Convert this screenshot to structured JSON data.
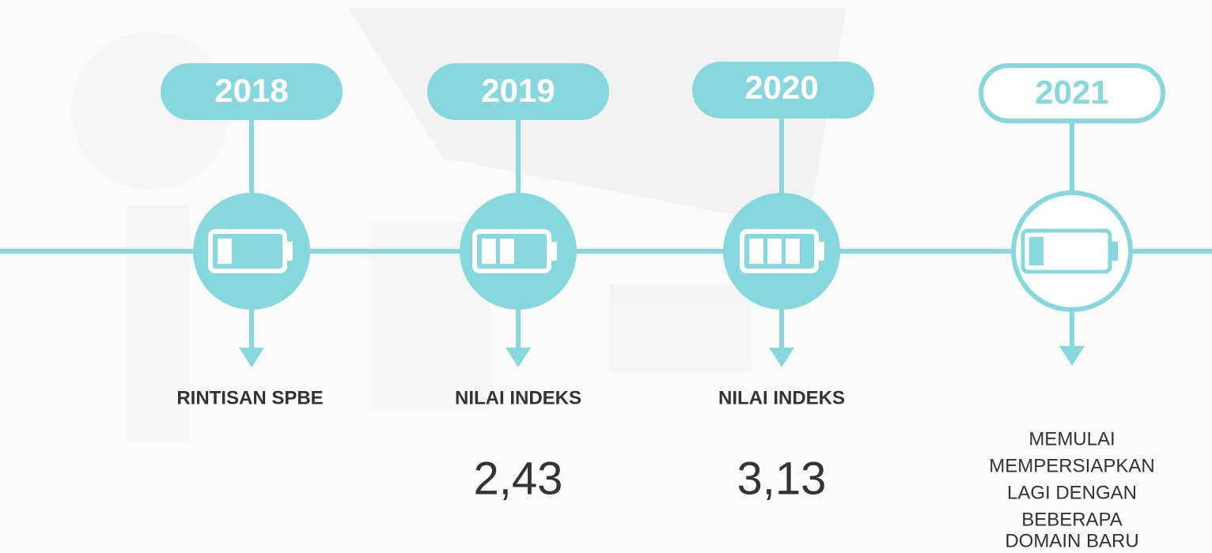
{
  "timeline": [
    {
      "year": "2018",
      "label": "RINTISAN SPBE"
    },
    {
      "year": "2019",
      "label": "NILAI INDEKS",
      "value": "2,43"
    },
    {
      "year": "2020",
      "label": "NILAI INDEKS",
      "value": "3,13"
    },
    {
      "year": "2021",
      "description": [
        "MEMULAI",
        "MEMPERSIAPKAN",
        "LAGI DENGAN",
        "BEBERAPA",
        "DOMAIN BARU"
      ]
    }
  ]
}
